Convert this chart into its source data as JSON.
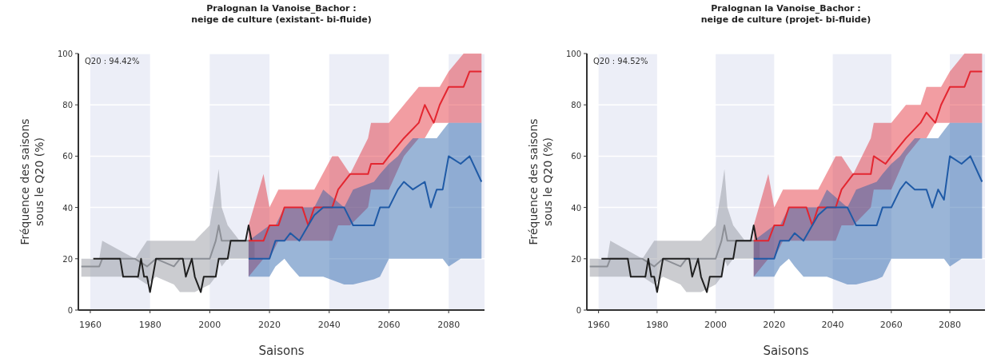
{
  "chart_data": [
    {
      "type": "line",
      "title": "Pralognan la Vanoise_Bachor :",
      "subtitle": "neige de culture (existant- bi-fluide)",
      "xlabel": "Saisons",
      "ylabel": "Fréquence des saisons\nsous le Q20 (%)",
      "annotations": [
        "Q20 : 94.42%"
      ],
      "xlim": [
        1956,
        2092
      ],
      "ylim": [
        0,
        100
      ],
      "xticks": [
        1960,
        1980,
        2000,
        2020,
        2040,
        2060,
        2080
      ],
      "yticks": [
        0,
        20,
        40,
        60,
        80,
        100
      ],
      "grid": "y",
      "line_style": "solid",
      "marker": "none",
      "bands": [
        {
          "axis": "x",
          "from": 1960,
          "to": 1980,
          "color": "#eceef7"
        },
        {
          "axis": "x",
          "from": 2000,
          "to": 2020,
          "color": "#eceef7"
        },
        {
          "axis": "x",
          "from": 2040,
          "to": 2060,
          "color": "#eceef7"
        },
        {
          "axis": "x",
          "from": 2080,
          "to": 2092,
          "color": "#eceef7"
        }
      ],
      "series": [
        {
          "color": "#8c8f96",
          "x": [
            1957,
            1963,
            1964,
            1975,
            1979,
            1982,
            1988,
            1990,
            1995,
            2000,
            2002,
            2003,
            2004,
            2006,
            2010,
            2015
          ],
          "values": [
            17,
            17,
            20,
            20,
            17,
            20,
            17,
            20,
            20,
            20,
            27,
            33,
            27,
            27,
            27,
            27
          ],
          "lower": [
            13,
            13,
            13,
            13,
            10,
            13,
            10,
            7,
            7,
            10,
            13,
            20,
            17,
            20,
            20,
            20
          ],
          "upper": [
            20,
            20,
            27,
            20,
            27,
            27,
            27,
            27,
            27,
            33,
            47,
            55,
            40,
            33,
            27,
            27
          ]
        },
        {
          "color": "#1f1f1f",
          "x": [
            1961,
            1970,
            1971,
            1976,
            1977,
            1978,
            1979,
            1980,
            1982,
            1991,
            1992,
            1994,
            1995,
            1997,
            1998,
            2002,
            2003,
            2006,
            2007,
            2012,
            2013,
            2014
          ],
          "values": [
            20,
            20,
            13,
            13,
            20,
            13,
            13,
            7,
            20,
            20,
            13,
            20,
            13,
            7,
            13,
            13,
            20,
            20,
            27,
            27,
            33,
            27
          ]
        },
        {
          "color": "#e32630",
          "x": [
            2013,
            2018,
            2020,
            2023,
            2025,
            2031,
            2033,
            2035,
            2041,
            2043,
            2047,
            2053,
            2054,
            2058,
            2060,
            2065,
            2070,
            2072,
            2075,
            2077,
            2080,
            2085,
            2087,
            2091
          ],
          "values": [
            27,
            27,
            33,
            33,
            40,
            40,
            33,
            40,
            40,
            47,
            53,
            53,
            57,
            57,
            60,
            67,
            73,
            80,
            73,
            80,
            87,
            87,
            93,
            93
          ],
          "lower": [
            13,
            20,
            20,
            27,
            27,
            27,
            27,
            27,
            27,
            33,
            33,
            40,
            47,
            47,
            47,
            60,
            67,
            67,
            73,
            73,
            73,
            73,
            73,
            73
          ],
          "upper": [
            33,
            53,
            40,
            47,
            47,
            47,
            47,
            47,
            60,
            60,
            53,
            67,
            73,
            73,
            73,
            80,
            87,
            87,
            87,
            87,
            93,
            100,
            100,
            100
          ]
        },
        {
          "color": "#1f5aa6",
          "x": [
            2013,
            2020,
            2022,
            2025,
            2027,
            2030,
            2033,
            2035,
            2038,
            2045,
            2048,
            2055,
            2057,
            2060,
            2063,
            2065,
            2068,
            2072,
            2074,
            2076,
            2078,
            2080,
            2084,
            2087,
            2091
          ],
          "values": [
            20,
            20,
            27,
            27,
            30,
            27,
            33,
            37,
            40,
            40,
            33,
            33,
            40,
            40,
            47,
            50,
            47,
            50,
            40,
            47,
            47,
            60,
            57,
            60,
            50
          ],
          "lower": [
            13,
            13,
            17,
            20,
            17,
            13,
            13,
            13,
            13,
            10,
            10,
            12,
            13,
            20,
            20,
            20,
            20,
            20,
            20,
            20,
            20,
            17,
            20,
            20,
            20
          ],
          "upper": [
            27,
            33,
            33,
            40,
            40,
            40,
            40,
            40,
            47,
            40,
            47,
            50,
            53,
            57,
            60,
            63,
            67,
            67,
            67,
            67,
            70,
            73,
            73,
            73,
            73
          ]
        }
      ]
    },
    {
      "type": "line",
      "title": "Pralognan la Vanoise_Bachor :",
      "subtitle": "neige de culture (projet- bi-fluide)",
      "xlabel": "Saisons",
      "ylabel": "Fréquence des saisons\nsous le Q20 (%)",
      "annotations": [
        "Q20 : 94.52%"
      ],
      "xlim": [
        1956,
        2092
      ],
      "ylim": [
        0,
        100
      ],
      "xticks": [
        1960,
        1980,
        2000,
        2020,
        2040,
        2060,
        2080
      ],
      "yticks": [
        0,
        20,
        40,
        60,
        80,
        100
      ],
      "grid": "y",
      "line_style": "solid",
      "marker": "none",
      "bands": [
        {
          "axis": "x",
          "from": 1960,
          "to": 1980,
          "color": "#eceef7"
        },
        {
          "axis": "x",
          "from": 2000,
          "to": 2020,
          "color": "#eceef7"
        },
        {
          "axis": "x",
          "from": 2040,
          "to": 2060,
          "color": "#eceef7"
        },
        {
          "axis": "x",
          "from": 2080,
          "to": 2092,
          "color": "#eceef7"
        }
      ],
      "series": [
        {
          "color": "#8c8f96",
          "x": [
            1957,
            1963,
            1964,
            1975,
            1979,
            1982,
            1988,
            1990,
            1995,
            2000,
            2002,
            2003,
            2004,
            2006,
            2010,
            2015
          ],
          "values": [
            17,
            17,
            20,
            20,
            17,
            20,
            17,
            20,
            20,
            20,
            27,
            33,
            27,
            27,
            27,
            27
          ],
          "lower": [
            13,
            13,
            13,
            13,
            10,
            13,
            10,
            7,
            7,
            10,
            13,
            20,
            17,
            20,
            20,
            20
          ],
          "upper": [
            20,
            20,
            27,
            20,
            27,
            27,
            27,
            27,
            27,
            33,
            47,
            55,
            40,
            33,
            27,
            27
          ]
        },
        {
          "color": "#1f1f1f",
          "x": [
            1961,
            1970,
            1971,
            1976,
            1977,
            1978,
            1979,
            1980,
            1982,
            1991,
            1992,
            1994,
            1995,
            1997,
            1998,
            2002,
            2003,
            2006,
            2007,
            2012,
            2013,
            2014
          ],
          "values": [
            20,
            20,
            13,
            13,
            20,
            13,
            13,
            7,
            20,
            20,
            13,
            20,
            13,
            7,
            13,
            13,
            20,
            20,
            27,
            27,
            33,
            27
          ]
        },
        {
          "color": "#e32630",
          "x": [
            2013,
            2018,
            2020,
            2023,
            2025,
            2031,
            2033,
            2035,
            2041,
            2043,
            2047,
            2053,
            2054,
            2058,
            2060,
            2065,
            2070,
            2072,
            2075,
            2077,
            2080,
            2085,
            2087,
            2091
          ],
          "values": [
            27,
            27,
            33,
            33,
            40,
            40,
            33,
            40,
            40,
            47,
            53,
            53,
            60,
            57,
            60,
            67,
            73,
            77,
            73,
            80,
            87,
            87,
            93,
            93
          ],
          "lower": [
            13,
            20,
            20,
            27,
            27,
            27,
            27,
            27,
            27,
            33,
            33,
            40,
            47,
            47,
            47,
            60,
            67,
            67,
            73,
            73,
            73,
            73,
            73,
            73
          ],
          "upper": [
            33,
            53,
            40,
            47,
            47,
            47,
            47,
            47,
            60,
            60,
            53,
            67,
            73,
            73,
            73,
            80,
            80,
            87,
            87,
            87,
            93,
            100,
            100,
            100
          ]
        },
        {
          "color": "#1f5aa6",
          "x": [
            2013,
            2020,
            2022,
            2025,
            2027,
            2030,
            2033,
            2035,
            2038,
            2045,
            2048,
            2055,
            2057,
            2060,
            2063,
            2065,
            2068,
            2072,
            2074,
            2076,
            2078,
            2080,
            2084,
            2087,
            2091
          ],
          "values": [
            20,
            20,
            27,
            27,
            30,
            27,
            33,
            37,
            40,
            40,
            33,
            33,
            40,
            40,
            47,
            50,
            47,
            47,
            40,
            47,
            43,
            60,
            57,
            60,
            50
          ],
          "lower": [
            13,
            13,
            17,
            20,
            17,
            13,
            13,
            13,
            13,
            10,
            10,
            12,
            13,
            20,
            20,
            20,
            20,
            20,
            20,
            20,
            20,
            17,
            20,
            20,
            20
          ],
          "upper": [
            27,
            33,
            33,
            40,
            40,
            40,
            40,
            40,
            47,
            40,
            47,
            50,
            53,
            57,
            60,
            63,
            67,
            67,
            67,
            67,
            70,
            73,
            73,
            73,
            73
          ]
        }
      ]
    }
  ]
}
